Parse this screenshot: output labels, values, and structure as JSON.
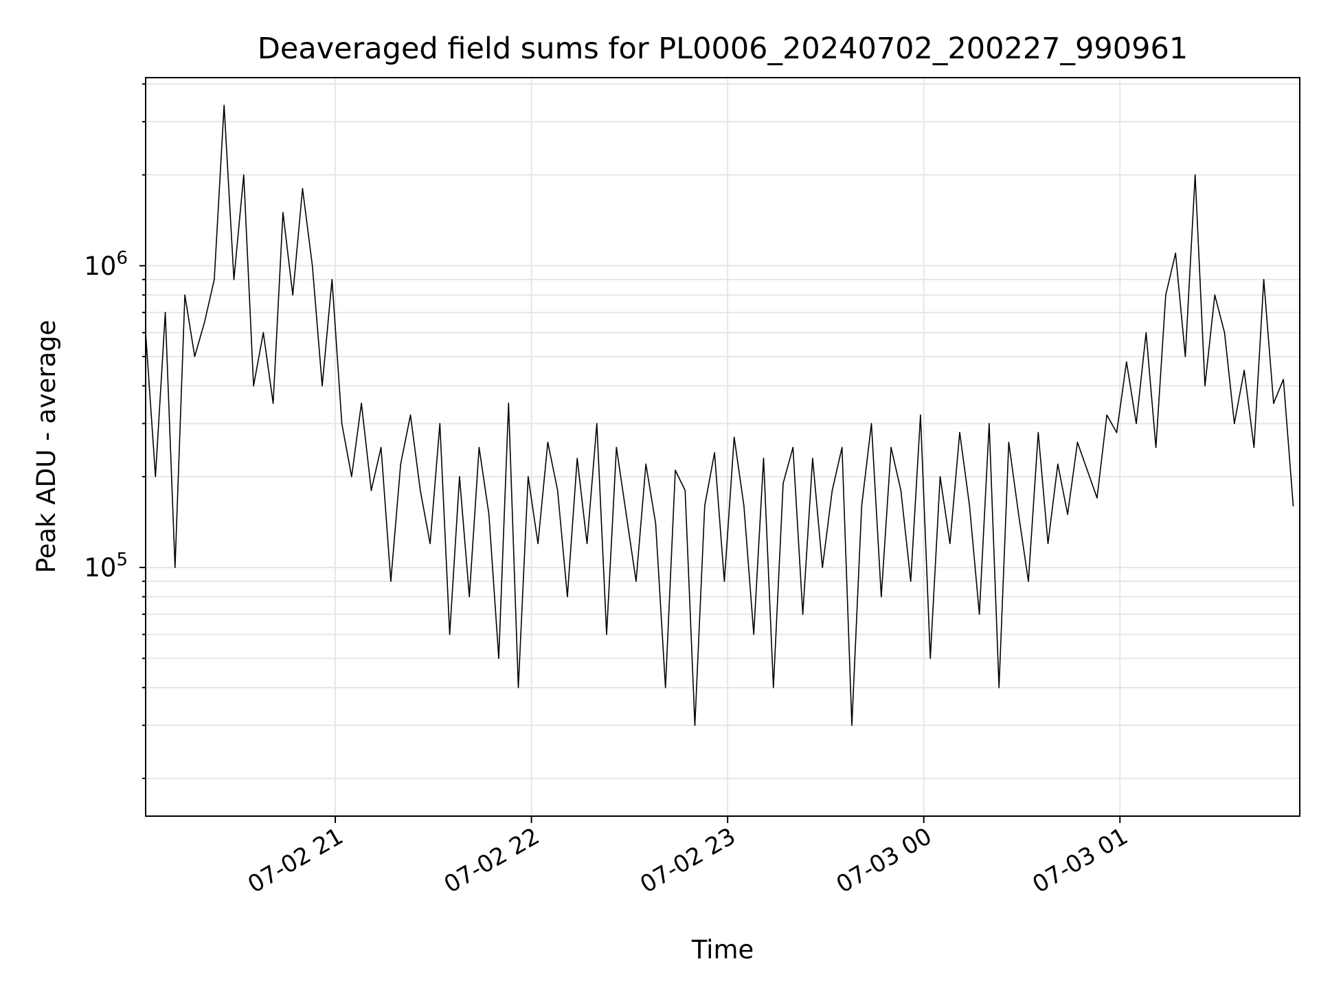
{
  "chart_data": {
    "type": "line",
    "title": "Deaveraged field sums for PL0006_20240702_200227_990961",
    "xlabel": "Time",
    "ylabel": "Peak ADU - average",
    "yscale": "log",
    "ylim": [
      15000,
      4200000
    ],
    "xlim": [
      "2024-07-02 20:02",
      "2024-07-03 01:55"
    ],
    "grid": true,
    "legend": "none",
    "x_ticks": [
      {
        "t": "2024-07-02 21:00",
        "label": "07-02 21"
      },
      {
        "t": "2024-07-02 22:00",
        "label": "07-02 22"
      },
      {
        "t": "2024-07-02 23:00",
        "label": "07-02 23"
      },
      {
        "t": "2024-07-03 00:00",
        "label": "07-03 00"
      },
      {
        "t": "2024-07-03 01:00",
        "label": "07-03 01"
      }
    ],
    "y_ticks": [
      {
        "value": 100000,
        "base": "10",
        "exp": "5"
      },
      {
        "value": 1000000,
        "base": "10",
        "exp": "6"
      }
    ],
    "colors": {
      "line": "#000000",
      "grid": "#e6e6e6",
      "frame": "#000000"
    },
    "series": [
      {
        "x": [
          "2024-07-02 20:02",
          "2024-07-02 20:05",
          "2024-07-02 20:08",
          "2024-07-02 20:11",
          "2024-07-02 20:14",
          "2024-07-02 20:17",
          "2024-07-02 20:20",
          "2024-07-02 20:23",
          "2024-07-02 20:26",
          "2024-07-02 20:29",
          "2024-07-02 20:32",
          "2024-07-02 20:35",
          "2024-07-02 20:38",
          "2024-07-02 20:41",
          "2024-07-02 20:44",
          "2024-07-02 20:47",
          "2024-07-02 20:50",
          "2024-07-02 20:53",
          "2024-07-02 20:56",
          "2024-07-02 20:59",
          "2024-07-02 21:02",
          "2024-07-02 21:05",
          "2024-07-02 21:08",
          "2024-07-02 21:11",
          "2024-07-02 21:14",
          "2024-07-02 21:17",
          "2024-07-02 21:20",
          "2024-07-02 21:23",
          "2024-07-02 21:26",
          "2024-07-02 21:29",
          "2024-07-02 21:32",
          "2024-07-02 21:35",
          "2024-07-02 21:38",
          "2024-07-02 21:41",
          "2024-07-02 21:44",
          "2024-07-02 21:47",
          "2024-07-02 21:50",
          "2024-07-02 21:53",
          "2024-07-02 21:56",
          "2024-07-02 21:59",
          "2024-07-02 22:02",
          "2024-07-02 22:05",
          "2024-07-02 22:08",
          "2024-07-02 22:11",
          "2024-07-02 22:14",
          "2024-07-02 22:17",
          "2024-07-02 22:20",
          "2024-07-02 22:23",
          "2024-07-02 22:26",
          "2024-07-02 22:29",
          "2024-07-02 22:32",
          "2024-07-02 22:35",
          "2024-07-02 22:38",
          "2024-07-02 22:41",
          "2024-07-02 22:44",
          "2024-07-02 22:47",
          "2024-07-02 22:50",
          "2024-07-02 22:53",
          "2024-07-02 22:56",
          "2024-07-02 22:59",
          "2024-07-02 23:02",
          "2024-07-02 23:05",
          "2024-07-02 23:08",
          "2024-07-02 23:11",
          "2024-07-02 23:14",
          "2024-07-02 23:17",
          "2024-07-02 23:20",
          "2024-07-02 23:23",
          "2024-07-02 23:26",
          "2024-07-02 23:29",
          "2024-07-02 23:32",
          "2024-07-02 23:35",
          "2024-07-02 23:38",
          "2024-07-02 23:41",
          "2024-07-02 23:44",
          "2024-07-02 23:47",
          "2024-07-02 23:50",
          "2024-07-02 23:53",
          "2024-07-02 23:56",
          "2024-07-02 23:59",
          "2024-07-03 00:02",
          "2024-07-03 00:05",
          "2024-07-03 00:08",
          "2024-07-03 00:11",
          "2024-07-03 00:14",
          "2024-07-03 00:17",
          "2024-07-03 00:20",
          "2024-07-03 00:23",
          "2024-07-03 00:26",
          "2024-07-03 00:29",
          "2024-07-03 00:32",
          "2024-07-03 00:35",
          "2024-07-03 00:38",
          "2024-07-03 00:41",
          "2024-07-03 00:44",
          "2024-07-03 00:47",
          "2024-07-03 00:50",
          "2024-07-03 00:53",
          "2024-07-03 00:56",
          "2024-07-03 00:59",
          "2024-07-03 01:02",
          "2024-07-03 01:05",
          "2024-07-03 01:08",
          "2024-07-03 01:11",
          "2024-07-03 01:14",
          "2024-07-03 01:17",
          "2024-07-03 01:20",
          "2024-07-03 01:23",
          "2024-07-03 01:26",
          "2024-07-03 01:29",
          "2024-07-03 01:32",
          "2024-07-03 01:35",
          "2024-07-03 01:38",
          "2024-07-03 01:41",
          "2024-07-03 01:44",
          "2024-07-03 01:47",
          "2024-07-03 01:50",
          "2024-07-03 01:53"
        ],
        "values": [
          600000,
          200000,
          700000,
          100000,
          800000,
          500000,
          650000,
          900000,
          3400000,
          900000,
          2000000,
          400000,
          600000,
          350000,
          1500000,
          800000,
          1800000,
          1000000,
          400000,
          900000,
          300000,
          200000,
          350000,
          180000,
          250000,
          90000,
          220000,
          320000,
          180000,
          120000,
          300000,
          60000,
          200000,
          80000,
          250000,
          150000,
          50000,
          350000,
          40000,
          200000,
          120000,
          260000,
          180000,
          80000,
          230000,
          120000,
          300000,
          60000,
          250000,
          150000,
          90000,
          220000,
          140000,
          40000,
          210000,
          180000,
          30000,
          160000,
          240000,
          90000,
          270000,
          160000,
          60000,
          230000,
          40000,
          190000,
          250000,
          70000,
          230000,
          100000,
          180000,
          250000,
          30000,
          160000,
          300000,
          80000,
          250000,
          180000,
          90000,
          320000,
          50000,
          200000,
          120000,
          280000,
          160000,
          70000,
          300000,
          40000,
          260000,
          150000,
          90000,
          280000,
          120000,
          220000,
          150000,
          260000,
          210000,
          170000,
          320000,
          280000,
          480000,
          300000,
          600000,
          250000,
          800000,
          1100000,
          500000,
          2000000,
          400000,
          800000,
          600000,
          300000,
          450000,
          250000,
          900000,
          350000,
          420000,
          160000
        ]
      }
    ]
  }
}
